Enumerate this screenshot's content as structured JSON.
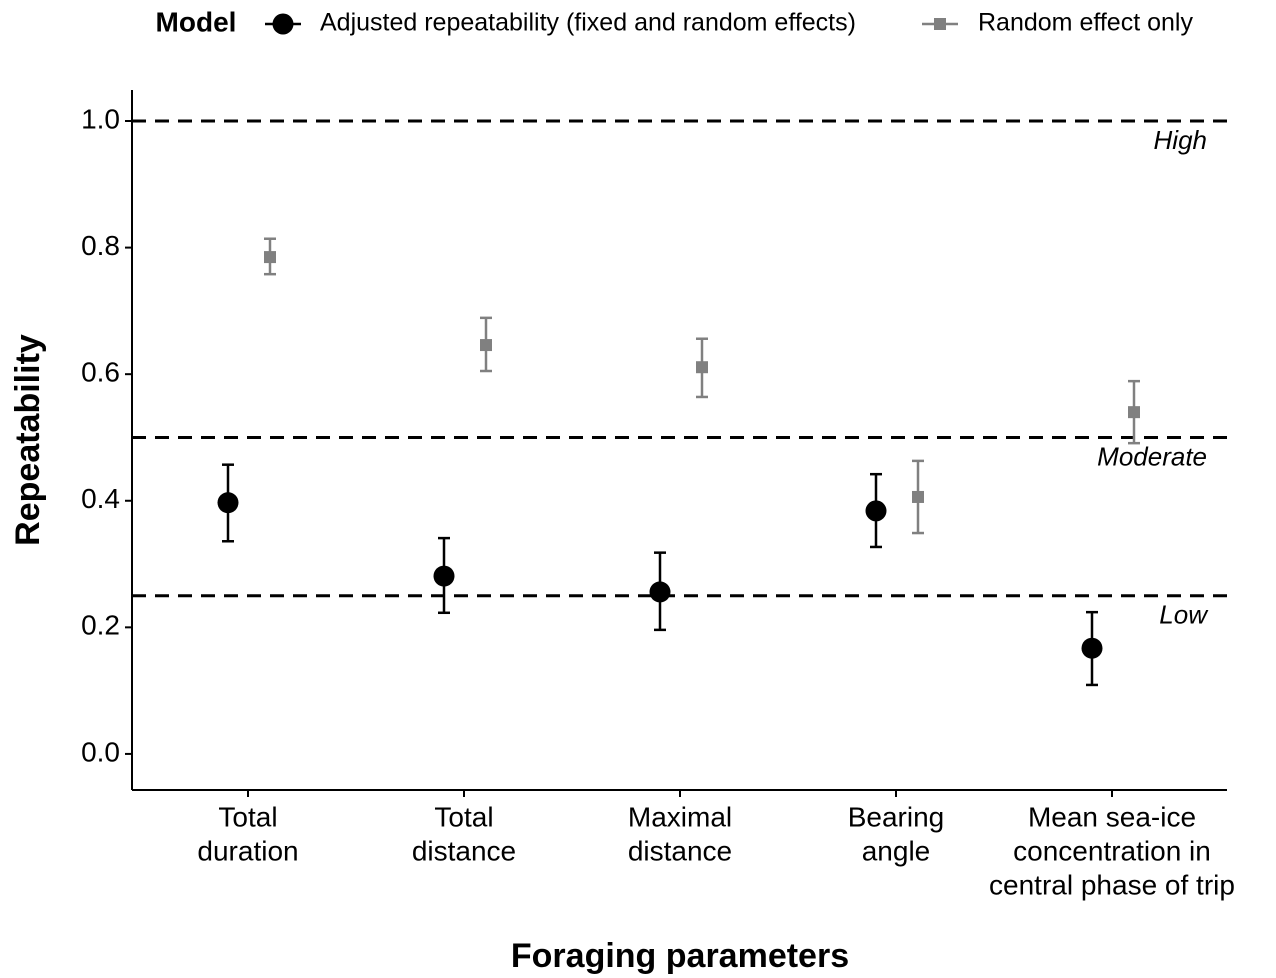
{
  "chart_data": {
    "type": "errorbar",
    "x_label": "Foraging parameters",
    "y_label": "Repeatability",
    "legend_title": "Model",
    "legend_position": "top",
    "categories": [
      [
        "Total",
        "duration"
      ],
      [
        "Total",
        "distance"
      ],
      [
        "Maximal",
        "distance"
      ],
      [
        "Bearing",
        "angle"
      ],
      [
        "Mean sea-ice",
        "concentration in",
        "central phase of trip"
      ]
    ],
    "series": [
      {
        "name": "Adjusted repeatability (fixed and random effects)",
        "color": "#000000",
        "marker": "circle",
        "values": [
          0.397,
          0.281,
          0.256,
          0.384,
          0.167
        ],
        "lower": [
          0.336,
          0.223,
          0.196,
          0.327,
          0.109
        ],
        "upper": [
          0.457,
          0.341,
          0.318,
          0.442,
          0.224
        ]
      },
      {
        "name": "Random effect only",
        "color": "#808080",
        "marker": "square",
        "values": [
          0.785,
          0.646,
          0.611,
          0.406,
          0.54
        ],
        "lower": [
          0.758,
          0.605,
          0.564,
          0.349,
          0.491
        ],
        "upper": [
          0.814,
          0.689,
          0.656,
          0.463,
          0.589
        ]
      }
    ],
    "reference_lines": [
      {
        "value": 1.0,
        "label": "High"
      },
      {
        "value": 0.5,
        "label": "Moderate"
      },
      {
        "value": 0.25,
        "label": "Low"
      }
    ],
    "ylim": [
      -0.057,
      1.049
    ],
    "yticks": [
      {
        "value": 0,
        "label": "0.0"
      },
      0.2,
      0.4,
      0.6,
      0.8,
      {
        "value": 1,
        "label": "1.0"
      }
    ],
    "grid": false
  }
}
